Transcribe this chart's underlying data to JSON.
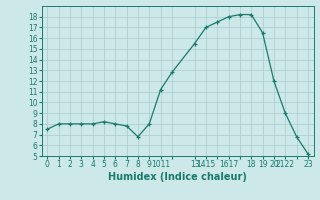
{
  "x": [
    0,
    1,
    2,
    3,
    4,
    5,
    6,
    7,
    8,
    9,
    10,
    11,
    13,
    14,
    15,
    16,
    17,
    18,
    19,
    20,
    21,
    22,
    23
  ],
  "y": [
    7.5,
    8.0,
    8.0,
    8.0,
    8.0,
    8.2,
    8.0,
    7.8,
    6.8,
    8.0,
    11.2,
    12.8,
    15.5,
    17.0,
    17.5,
    18.0,
    18.2,
    18.2,
    16.5,
    12.0,
    9.0,
    6.8,
    5.2
  ],
  "xlabel": "Humidex (Indice chaleur)",
  "xlim": [
    -0.5,
    23.5
  ],
  "ylim": [
    5,
    19
  ],
  "yticks": [
    5,
    6,
    7,
    8,
    9,
    10,
    11,
    12,
    13,
    14,
    15,
    16,
    17,
    18
  ],
  "xtick_positions": [
    0,
    1,
    2,
    3,
    4,
    5,
    6,
    7,
    8,
    9,
    10,
    11,
    13,
    14,
    15,
    16,
    17,
    18,
    19,
    20,
    21,
    22,
    23
  ],
  "xtick_labels": [
    "0",
    "1",
    "2",
    "3",
    "4",
    "5",
    "6",
    "7",
    "8",
    "9",
    "1011",
    "",
    "13",
    "1415",
    "",
    "1617",
    "",
    "18",
    "19",
    "20",
    "2122",
    "",
    "23"
  ],
  "line_color": "#1a7a6e",
  "bg_color": "#cce8e8",
  "grid_color": "#aacccc",
  "label_color": "#1a7a6e",
  "tick_fontsize": 5.5,
  "xlabel_fontsize": 7.0,
  "ytick_fontsize": 5.5
}
